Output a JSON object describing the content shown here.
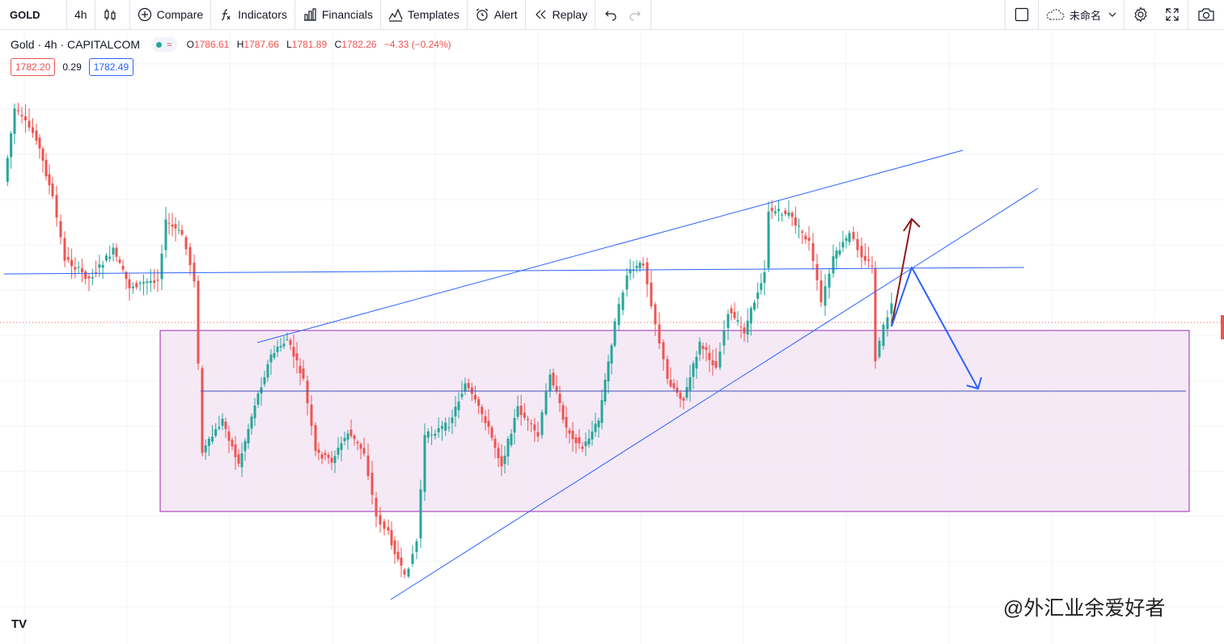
{
  "toolbar": {
    "symbol": "GOLD",
    "interval": "4h",
    "compare_label": "Compare",
    "indicators_label": "Indicators",
    "financials_label": "Financials",
    "templates_label": "Templates",
    "alert_label": "Alert",
    "replay_label": "Replay",
    "layout_name": "未命名"
  },
  "legend": {
    "title": "Gold · 4h · CAPITALCOM",
    "open_label": "O",
    "open": "1786.61",
    "high_label": "H",
    "high": "1787.66",
    "low_label": "L",
    "low": "1781.89",
    "close_label": "C",
    "close": "1782.26",
    "change": "−4.33 (−0.24%)",
    "sell_price": "1782.20",
    "spread": "0.29",
    "buy_price": "1782.49"
  },
  "colors": {
    "up": "#26a69a",
    "down": "#ef5350",
    "trendline": "#2962ff",
    "zone_fill": "#f3e5f5",
    "zone_border": "#9c27b0",
    "arrow_up": "#8b1a1a",
    "arrow_down": "#2962ff"
  },
  "watermark": "@外汇业余爱好者",
  "chart_logo": "TV",
  "chart_data": {
    "type": "candlestick",
    "symbol": "Gold",
    "interval": "4h",
    "last_ohlc": {
      "open": 1786.61,
      "high": 1787.66,
      "low": 1781.89,
      "close": 1782.26
    },
    "annotations": [
      "ascending upper trendline",
      "ascending lower trendline",
      "horizontal resistance line",
      "rectangle support zone",
      "bullish arrow",
      "bearish arrow"
    ]
  }
}
